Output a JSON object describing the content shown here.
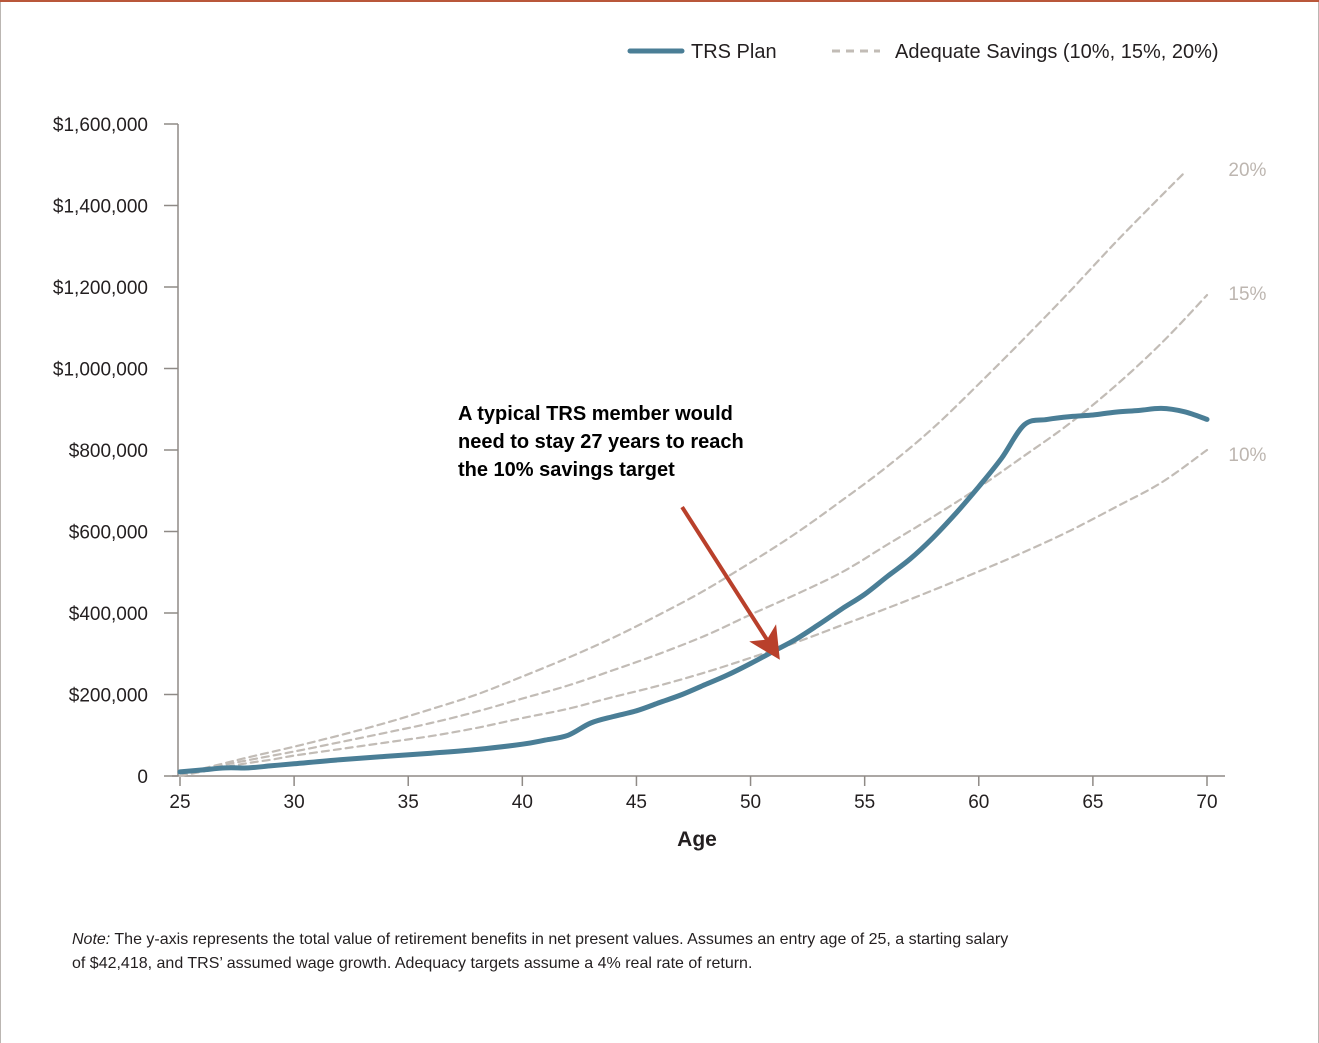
{
  "chart_data": {
    "type": "line",
    "xlabel": "Age",
    "ylabel": "",
    "xlim": [
      25,
      70
    ],
    "ylim": [
      0,
      1600000
    ],
    "x_ticks": [
      25,
      30,
      35,
      40,
      45,
      50,
      55,
      60,
      65,
      70
    ],
    "y_ticks": [
      {
        "value": 0,
        "label": "0"
      },
      {
        "value": 200000,
        "label": "$200,000"
      },
      {
        "value": 400000,
        "label": "$400,000"
      },
      {
        "value": 600000,
        "label": "$600,000"
      },
      {
        "value": 800000,
        "label": "$800,000"
      },
      {
        "value": 1000000,
        "label": "$1,000,000"
      },
      {
        "value": 1200000,
        "label": "$1,200,000"
      },
      {
        "value": 1400000,
        "label": "$1,400,000"
      },
      {
        "value": 1600000,
        "label": "$1,600,000"
      }
    ],
    "legend": {
      "placement": "top-right",
      "entries": [
        {
          "label": "TRS Plan",
          "style": "solid",
          "color": "#4a7e96"
        },
        {
          "label": "Adequate Savings (10%, 15%, 20%)",
          "style": "dashed",
          "color": "#c2bcb6"
        }
      ]
    },
    "series": [
      {
        "name": "TRS Plan",
        "style": "solid",
        "color": "#4a7e96",
        "points": [
          [
            25,
            10000
          ],
          [
            26,
            15000
          ],
          [
            27,
            20000
          ],
          [
            28,
            20000
          ],
          [
            29,
            25000
          ],
          [
            30,
            30000
          ],
          [
            32,
            40000
          ],
          [
            34,
            48000
          ],
          [
            36,
            56000
          ],
          [
            38,
            65000
          ],
          [
            40,
            78000
          ],
          [
            41,
            88000
          ],
          [
            42,
            100000
          ],
          [
            43,
            130000
          ],
          [
            44,
            146000
          ],
          [
            45,
            160000
          ],
          [
            46,
            180000
          ],
          [
            47,
            200000
          ],
          [
            48,
            224000
          ],
          [
            49,
            248000
          ],
          [
            50,
            276000
          ],
          [
            51,
            306000
          ],
          [
            52,
            336000
          ],
          [
            53,
            372000
          ],
          [
            54,
            410000
          ],
          [
            55,
            446000
          ],
          [
            56,
            490000
          ],
          [
            57,
            533000
          ],
          [
            58,
            585000
          ],
          [
            59,
            645000
          ],
          [
            60,
            710000
          ],
          [
            61,
            780000
          ],
          [
            62,
            862000
          ],
          [
            63,
            875000
          ],
          [
            64,
            882000
          ],
          [
            65,
            886000
          ],
          [
            66,
            893000
          ],
          [
            67,
            897000
          ],
          [
            68,
            902000
          ],
          [
            69,
            894000
          ],
          [
            70,
            875000
          ]
        ]
      },
      {
        "name": "10%",
        "style": "dashed",
        "color": "#c2bcb6",
        "points": [
          [
            25,
            0
          ],
          [
            26,
            11000
          ],
          [
            27,
            22000
          ],
          [
            28,
            32000
          ],
          [
            29,
            40000
          ],
          [
            30,
            50000
          ],
          [
            32,
            66000
          ],
          [
            34,
            82000
          ],
          [
            36,
            98000
          ],
          [
            38,
            118000
          ],
          [
            40,
            142000
          ],
          [
            42,
            165000
          ],
          [
            44,
            194000
          ],
          [
            46,
            222000
          ],
          [
            48,
            254000
          ],
          [
            50,
            290000
          ],
          [
            52,
            328000
          ],
          [
            54,
            370000
          ],
          [
            56,
            412000
          ],
          [
            58,
            456000
          ],
          [
            60,
            502000
          ],
          [
            62,
            550000
          ],
          [
            64,
            602000
          ],
          [
            66,
            660000
          ],
          [
            68,
            720000
          ],
          [
            70,
            800000
          ]
        ]
      },
      {
        "name": "15%",
        "style": "dashed",
        "color": "#c2bcb6",
        "points": [
          [
            25,
            0
          ],
          [
            26,
            15000
          ],
          [
            27,
            28000
          ],
          [
            28,
            39000
          ],
          [
            30,
            60000
          ],
          [
            32,
            83000
          ],
          [
            34,
            106000
          ],
          [
            36,
            130000
          ],
          [
            38,
            158000
          ],
          [
            40,
            190000
          ],
          [
            42,
            222000
          ],
          [
            44,
            260000
          ],
          [
            46,
            300000
          ],
          [
            48,
            344000
          ],
          [
            50,
            396000
          ],
          [
            52,
            446000
          ],
          [
            54,
            500000
          ],
          [
            56,
            568000
          ],
          [
            58,
            636000
          ],
          [
            60,
            708000
          ],
          [
            62,
            786000
          ],
          [
            64,
            866000
          ],
          [
            66,
            958000
          ],
          [
            68,
            1062000
          ],
          [
            70,
            1180000
          ]
        ]
      },
      {
        "name": "20%",
        "style": "dashed",
        "color": "#c2bcb6",
        "points": [
          [
            25,
            0
          ],
          [
            26,
            18000
          ],
          [
            27,
            32000
          ],
          [
            28,
            46000
          ],
          [
            30,
            72000
          ],
          [
            32,
            100000
          ],
          [
            34,
            130000
          ],
          [
            36,
            164000
          ],
          [
            38,
            200000
          ],
          [
            40,
            244000
          ],
          [
            42,
            290000
          ],
          [
            44,
            340000
          ],
          [
            46,
            396000
          ],
          [
            48,
            456000
          ],
          [
            50,
            524000
          ],
          [
            52,
            596000
          ],
          [
            54,
            676000
          ],
          [
            56,
            760000
          ],
          [
            58,
            854000
          ],
          [
            60,
            962000
          ],
          [
            62,
            1074000
          ],
          [
            64,
            1190000
          ],
          [
            66,
            1310000
          ],
          [
            68,
            1424000
          ],
          [
            69,
            1480000
          ]
        ]
      }
    ],
    "series_end_labels": [
      {
        "label": "20%",
        "x": 70.5,
        "y": 1490000
      },
      {
        "label": "15%",
        "x": 70.5,
        "y": 1185000
      },
      {
        "label": "10%",
        "x": 70.5,
        "y": 790000
      }
    ],
    "annotation": {
      "lines": [
        "A typical TRS member would",
        "need to stay 27 years to reach",
        "the 10% savings target"
      ],
      "color": "#b9402b",
      "arrow_from": [
        47.0,
        660000
      ],
      "arrow_to": [
        51.0,
        310000
      ]
    }
  },
  "note": {
    "label": "Note:",
    "line1": "The y-axis represents the total value of retirement benefits in net present values. Assumes an entry age of 25, a starting salary",
    "line2": "of $42,418, and TRS’ assumed wage growth. Adequacy targets assume a 4% real rate of return."
  }
}
